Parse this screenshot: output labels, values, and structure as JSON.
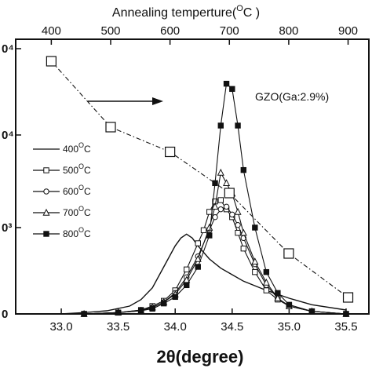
{
  "chart_data": {
    "type": "line",
    "x_bottom": {
      "label": "2θ(degree)",
      "range": [
        32.6,
        35.7
      ],
      "ticks": [
        "33.0",
        "33.5",
        "34.0",
        "34.5",
        "35.0",
        "35.5"
      ]
    },
    "x_top": {
      "label": "Annealing temperture(",
      "unit_sup": "O",
      "unit_tail": "C )",
      "range": [
        340,
        935
      ],
      "ticks": [
        "400",
        "500",
        "600",
        "700",
        "800",
        "900"
      ]
    },
    "y_left": {
      "range": [
        0,
        10.5
      ],
      "tick_labels": [
        "0",
        "0³",
        "0⁴",
        "0⁴"
      ]
    },
    "y_right": {
      "range": [
        0,
        1
      ]
    },
    "annotation": "GZO(Ga:2.9%)",
    "legend_placement": "left",
    "series": [
      {
        "name": "400",
        "marker": "none",
        "x": [
          33.0,
          33.2,
          33.4,
          33.6,
          33.7,
          33.8,
          33.9,
          34.0,
          34.05,
          34.1,
          34.15,
          34.2,
          34.3,
          34.4,
          34.5,
          34.6,
          34.8,
          35.0,
          35.2,
          35.5
        ],
        "y": [
          0.0,
          0.05,
          0.12,
          0.3,
          0.55,
          1.0,
          1.8,
          2.6,
          2.9,
          3.05,
          2.9,
          2.6,
          2.1,
          1.75,
          1.5,
          1.25,
          0.9,
          0.6,
          0.35,
          0.15
        ]
      },
      {
        "name": "500",
        "marker": "square-open",
        "x": [
          33.2,
          33.5,
          33.7,
          33.8,
          33.9,
          34.0,
          34.1,
          34.2,
          34.25,
          34.3,
          34.35,
          34.4,
          34.45,
          34.5,
          34.55,
          34.6,
          34.7,
          34.8,
          34.9,
          35.0,
          35.2,
          35.5
        ],
        "y": [
          0.0,
          0.05,
          0.15,
          0.3,
          0.5,
          0.9,
          1.7,
          2.7,
          3.2,
          3.9,
          4.3,
          4.35,
          4.0,
          3.7,
          3.1,
          2.5,
          1.6,
          0.9,
          0.55,
          0.3,
          0.1,
          0.0
        ]
      },
      {
        "name": "600",
        "marker": "circle-open",
        "x": [
          33.2,
          33.5,
          33.7,
          33.8,
          33.9,
          34.0,
          34.1,
          34.2,
          34.3,
          34.35,
          34.4,
          34.45,
          34.5,
          34.55,
          34.6,
          34.7,
          34.8,
          34.9,
          35.0,
          35.2,
          35.5
        ],
        "y": [
          0.0,
          0.05,
          0.15,
          0.25,
          0.45,
          0.8,
          1.4,
          2.2,
          3.2,
          3.7,
          4.0,
          4.1,
          3.8,
          3.4,
          2.9,
          1.9,
          1.1,
          0.6,
          0.3,
          0.1,
          0.0
        ]
      },
      {
        "name": "700",
        "marker": "triangle-open",
        "x": [
          33.2,
          33.5,
          33.7,
          33.8,
          33.9,
          34.0,
          34.1,
          34.2,
          34.3,
          34.35,
          34.4,
          34.45,
          34.5,
          34.55,
          34.6,
          34.7,
          34.8,
          34.9,
          35.0,
          35.2,
          35.5
        ],
        "y": [
          0.0,
          0.05,
          0.12,
          0.25,
          0.45,
          0.75,
          1.3,
          2.1,
          3.3,
          4.1,
          5.4,
          5.0,
          4.6,
          3.9,
          3.1,
          2.0,
          1.2,
          0.6,
          0.3,
          0.1,
          0.0
        ]
      },
      {
        "name": "800",
        "marker": "square-filled",
        "x": [
          33.2,
          33.5,
          33.7,
          33.8,
          33.9,
          34.0,
          34.1,
          34.2,
          34.3,
          34.35,
          34.4,
          34.45,
          34.5,
          34.55,
          34.6,
          34.7,
          34.8,
          34.9,
          35.0,
          35.2,
          35.5
        ],
        "y": [
          0.0,
          0.05,
          0.12,
          0.2,
          0.4,
          0.65,
          1.1,
          1.8,
          3.0,
          5.0,
          7.2,
          8.8,
          8.6,
          7.2,
          5.5,
          3.3,
          1.6,
          0.8,
          0.35,
          0.1,
          0.0
        ]
      },
      {
        "name": "",
        "marker": "square-open-large",
        "style": "dash-dot",
        "axis": "top",
        "x": [
          400,
          500,
          600,
          700,
          800,
          900
        ],
        "y": [
          0.92,
          0.68,
          0.59,
          0.44,
          0.22,
          0.06
        ]
      }
    ],
    "legend": [
      {
        "label": "400",
        "sup": "O",
        "tail": "C",
        "marker": "none"
      },
      {
        "label": "500",
        "sup": "O",
        "tail": "C",
        "marker": "square-open"
      },
      {
        "label": "600",
        "sup": "O",
        "tail": "C",
        "marker": "circle-open"
      },
      {
        "label": "700",
        "sup": "O",
        "tail": "C",
        "marker": "triangle-open"
      },
      {
        "label": "800",
        "sup": "O",
        "tail": "C",
        "marker": "square-filled"
      }
    ]
  }
}
